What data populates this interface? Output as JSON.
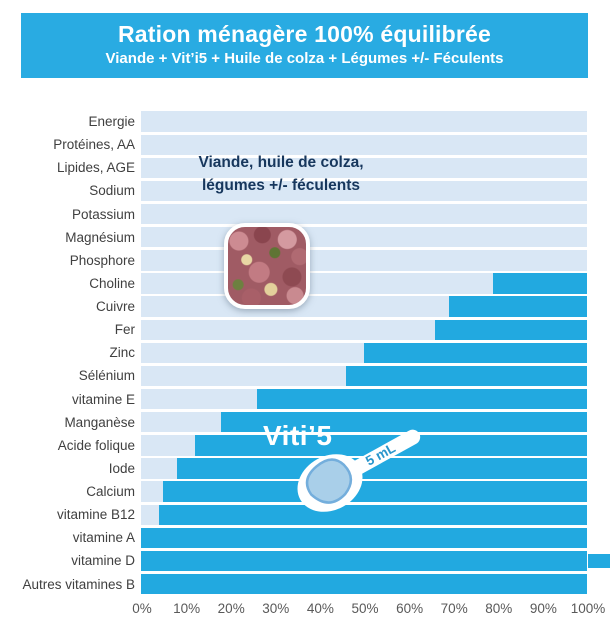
{
  "header": {
    "title": "Ration ménagère 100% équilibrée",
    "subtitle": "Viande + Vit’i5 + Huile de colza + Légumes +/- Féculents"
  },
  "annotations": {
    "food_label_line1": "Viande, huile de colza,",
    "food_label_line2": "légumes +/- féculents",
    "supplement_label": "Viti’5",
    "spoon_label": "5 mL",
    "food_photo": "minced-meat-with-vegetable-cubes-photo"
  },
  "colors": {
    "banner_blue": "#29ABE2",
    "bar_dark_blue": "#22A9E0",
    "bar_light_blue": "#D9E7F5",
    "overlay_navy_text": "#17375D",
    "y_label_gray": "#404040",
    "x_tick_gray": "#595959",
    "spoon_text_blue": "#2A96CC",
    "spoon_powder_blue": "#A9CFE9"
  },
  "chart_data": {
    "type": "bar",
    "orientation": "horizontal",
    "stacked": true,
    "units": "percent of daily requirement covered",
    "xlim": [
      0,
      100
    ],
    "grid": false,
    "xticks": [
      "0%",
      "10%",
      "20%",
      "30%",
      "40%",
      "50%",
      "60%",
      "70%",
      "80%",
      "90%",
      "100%"
    ],
    "categories": [
      "Energie",
      "Protéines, AA",
      "Lipides, AGE",
      "Sodium",
      "Potassium",
      "Magnésium",
      "Phosphore",
      "Choline",
      "Cuivre",
      "Fer",
      "Zinc",
      "Sélénium",
      "vitamine E",
      "Manganèse",
      "Acide folique",
      "Iode",
      "Calcium",
      "vitamine B12",
      "vitamine A",
      "vitamine D",
      "Autres vitamines B"
    ],
    "series": [
      {
        "name": "Viande, huile de colza, légumes +/- féculents",
        "color": "#D9E7F5",
        "values": [
          100,
          100,
          100,
          100,
          100,
          100,
          100,
          79,
          69,
          66,
          50,
          46,
          26,
          18,
          12,
          8,
          5,
          4,
          0,
          0,
          0
        ]
      },
      {
        "name": "Viti’5",
        "color": "#22A9E0",
        "values": [
          0,
          0,
          0,
          0,
          0,
          0,
          0,
          21,
          31,
          34,
          50,
          54,
          74,
          82,
          88,
          92,
          95,
          96,
          100,
          105.5,
          100
        ]
      }
    ],
    "overflow_note": "vitamine D bar exceeds 100% and is clipped at the right image edge"
  }
}
